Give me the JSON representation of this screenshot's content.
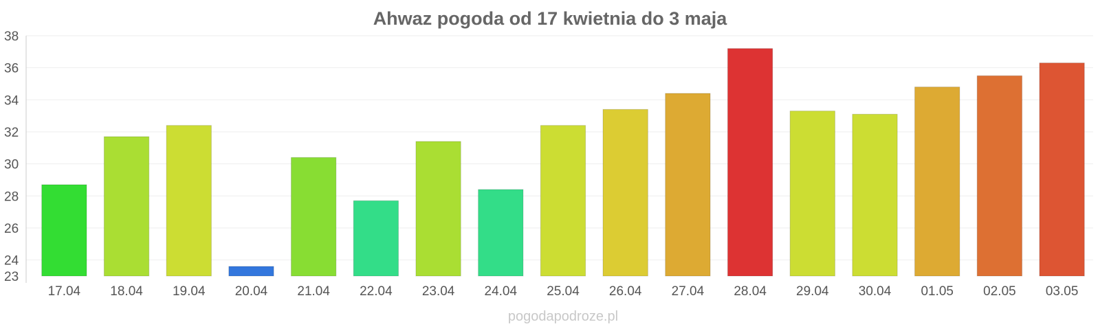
{
  "chart_data": {
    "type": "bar",
    "title": "Ahwaz pogoda od 17 kwietnia do 3 maja",
    "xlabel": "",
    "ylabel": "",
    "categories": [
      "17.04",
      "18.04",
      "19.04",
      "20.04",
      "21.04",
      "22.04",
      "23.04",
      "24.04",
      "25.04",
      "26.04",
      "27.04",
      "28.04",
      "29.04",
      "30.04",
      "01.05",
      "02.05",
      "03.05"
    ],
    "values": [
      28.7,
      31.7,
      32.4,
      23.6,
      30.4,
      27.7,
      31.4,
      28.4,
      32.4,
      33.4,
      34.4,
      37.2,
      33.3,
      33.1,
      34.8,
      35.5,
      36.3
    ],
    "colors": [
      "#33dd33",
      "#aade33",
      "#ccdd33",
      "#3377dd",
      "#88dd33",
      "#33dd88",
      "#aade33",
      "#33dd88",
      "#ccdd33",
      "#dccc33",
      "#ddaa33",
      "#dd3333",
      "#ccdd33",
      "#ccdd33",
      "#ddaa33",
      "#dd7033",
      "#dd5533"
    ],
    "yticks": [
      23,
      24,
      26,
      28,
      30,
      32,
      34,
      36,
      38
    ],
    "ylim": [
      23,
      38
    ],
    "grid": true,
    "legend": "none"
  },
  "watermark": "pogodapodroze.pl"
}
